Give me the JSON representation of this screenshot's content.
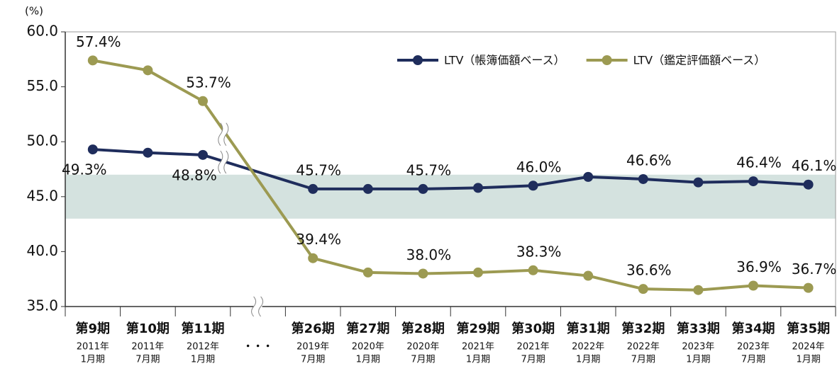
{
  "chart_data": {
    "type": "line",
    "y_unit": "(%)",
    "categories": [
      "第9期",
      "第10期",
      "第11期",
      "第26期",
      "第27期",
      "第28期",
      "第29期",
      "第30期",
      "第31期",
      "第32期",
      "第33期",
      "第34期",
      "第35期"
    ],
    "sublabels": [
      [
        "2011年",
        "1月期"
      ],
      [
        "2011年",
        "7月期"
      ],
      [
        "2012年",
        "1月期"
      ],
      [
        "2019年",
        "7月期"
      ],
      [
        "2020年",
        "1月期"
      ],
      [
        "2020年",
        "7月期"
      ],
      [
        "2021年",
        "1月期"
      ],
      [
        "2021年",
        "7月期"
      ],
      [
        "2022年",
        "1月期"
      ],
      [
        "2022年",
        "7月期"
      ],
      [
        "2023年",
        "1月期"
      ],
      [
        "2023年",
        "7月期"
      ],
      [
        "2024年",
        "1月期"
      ]
    ],
    "break_label": "・・・",
    "series": [
      {
        "name": "LTV（帳簿価額ベース）",
        "color": "#1f2d5c",
        "values": [
          49.3,
          49.0,
          48.8,
          45.7,
          45.7,
          45.7,
          45.8,
          46.0,
          46.8,
          46.6,
          46.3,
          46.4,
          46.1
        ],
        "value_labels": [
          "49.3%",
          null,
          "48.8%",
          "45.7%",
          null,
          "45.7%",
          null,
          "46.0%",
          null,
          "46.6%",
          null,
          "46.4%",
          "46.1%"
        ]
      },
      {
        "name": "LTV（鑑定評価額ベース）",
        "color": "#9c9a52",
        "values": [
          57.4,
          56.5,
          53.7,
          39.4,
          38.1,
          38.0,
          38.1,
          38.3,
          37.8,
          36.6,
          36.5,
          36.9,
          36.7
        ],
        "value_labels": [
          "57.4%",
          null,
          "53.7%",
          "39.4%",
          null,
          "38.0%",
          null,
          "38.3%",
          null,
          "36.6%",
          null,
          "36.9%",
          "36.7%"
        ]
      }
    ],
    "band": [
      43,
      47
    ],
    "band_color": "#d4e2df",
    "ylim": [
      35,
      60
    ],
    "yticks": [
      {
        "value": 35,
        "label": "35.0"
      },
      {
        "value": 40,
        "label": "40.0"
      },
      {
        "value": 45,
        "label": "45.0"
      },
      {
        "value": 50,
        "label": "50.0"
      },
      {
        "value": 55,
        "label": "55.0"
      },
      {
        "value": 60,
        "label": "60.0"
      }
    ],
    "legend": "top-right"
  }
}
